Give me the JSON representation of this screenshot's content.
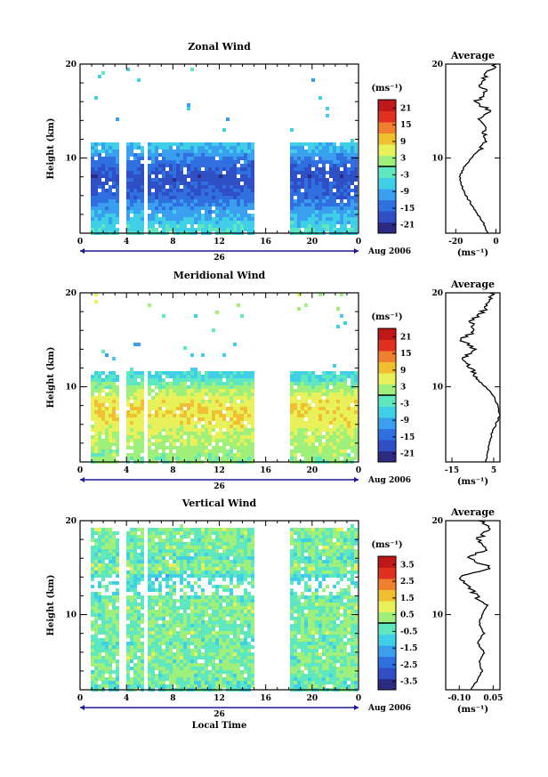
{
  "chart_data": [
    {
      "type": "heatmap",
      "title": "Zonal Wind",
      "ylabel": "Height (km)",
      "xlabel": "",
      "date_label": "Aug 2006",
      "date_tick": "26",
      "x_ticks": [
        "0",
        "4",
        "8",
        "12",
        "16",
        "20",
        "0"
      ],
      "y_ticks": [
        "10",
        "20"
      ],
      "xlim": [
        0,
        24
      ],
      "ylim": [
        2,
        20
      ],
      "gaps_hours": [
        [
          3.5,
          4.0
        ],
        [
          5.5,
          5.8
        ],
        [
          15.0,
          18.0
        ]
      ],
      "data_top_km": 11.5,
      "colorbar": {
        "unit": "(ms⁻¹)",
        "ticks": [
          "21",
          "15",
          "9",
          "3",
          "-3",
          "-9",
          "-15",
          "-21"
        ],
        "range": [
          -24,
          24
        ]
      },
      "profile_heights_km": [
        2,
        3,
        4,
        5,
        6,
        7,
        8,
        9,
        10,
        11,
        12,
        13,
        14,
        15,
        16,
        17,
        18,
        19,
        20
      ],
      "heatmap_values": [
        -4,
        -6,
        -9,
        -12,
        -15,
        -17,
        -18,
        -16,
        -12,
        -8,
        -5,
        -6,
        -8,
        -3,
        -10,
        -5,
        -8,
        -4,
        0
      ],
      "average": {
        "title": "Average",
        "xlabel": "(ms⁻¹)",
        "x_ticks": [
          "-20",
          "0"
        ],
        "xlim": [
          -25,
          2
        ],
        "heights_km": [
          2,
          3,
          4,
          5,
          6,
          7,
          8,
          9,
          10,
          11,
          12,
          13,
          14,
          15,
          16,
          17,
          18,
          19,
          20
        ],
        "values": [
          -4,
          -6,
          -9,
          -12,
          -15,
          -17,
          -18,
          -16,
          -12,
          -8,
          -5,
          -6,
          -8,
          -3,
          -10,
          -5,
          -8,
          -4,
          0
        ]
      }
    },
    {
      "type": "heatmap",
      "title": "Meridional Wind",
      "ylabel": "Height (km)",
      "xlabel": "",
      "date_label": "Aug 2006",
      "date_tick": "26",
      "x_ticks": [
        "0",
        "4",
        "8",
        "12",
        "16",
        "20",
        "0"
      ],
      "y_ticks": [
        "10",
        "20"
      ],
      "xlim": [
        0,
        24
      ],
      "ylim": [
        2,
        20
      ],
      "gaps_hours": [
        [
          3.5,
          4.0
        ],
        [
          5.5,
          5.8
        ],
        [
          15.0,
          18.0
        ]
      ],
      "data_top_km": 11.5,
      "colorbar": {
        "unit": "(ms⁻¹)",
        "ticks": [
          "21",
          "15",
          "9",
          "3",
          "-3",
          "-9",
          "-15",
          "-21"
        ],
        "range": [
          -24,
          24
        ]
      },
      "profile_heights_km": [
        2,
        3,
        4,
        5,
        6,
        7,
        8,
        9,
        10,
        11,
        12,
        13,
        14,
        15,
        16,
        17,
        18,
        19,
        20
      ],
      "heatmap_values": [
        1,
        2,
        3,
        4,
        6,
        8,
        7,
        5,
        1,
        -4,
        -6,
        -9,
        -4,
        -11,
        -3,
        -6,
        0,
        3,
        4
      ],
      "average": {
        "title": "Average",
        "xlabel": "(ms⁻¹)",
        "x_ticks": [
          "-15",
          "5"
        ],
        "xlim": [
          -18,
          8
        ],
        "heights_km": [
          2,
          3,
          4,
          5,
          6,
          7,
          8,
          9,
          10,
          11,
          12,
          13,
          14,
          15,
          16,
          17,
          18,
          19,
          20
        ],
        "values": [
          1,
          2,
          3,
          4,
          6,
          8,
          7,
          5,
          1,
          -4,
          -6,
          -9,
          -4,
          -11,
          -3,
          -6,
          0,
          3,
          4
        ]
      }
    },
    {
      "type": "heatmap",
      "title": "Vertical Wind",
      "ylabel": "Height (km)",
      "xlabel": "Local Time",
      "date_label": "Aug 2006",
      "date_tick": "26",
      "x_ticks": [
        "0",
        "4",
        "8",
        "12",
        "16",
        "20",
        "0"
      ],
      "y_ticks": [
        "10",
        "20"
      ],
      "xlim": [
        0,
        24
      ],
      "ylim": [
        2,
        20
      ],
      "gaps_hours": [
        [
          3.5,
          4.0
        ],
        [
          5.5,
          5.8
        ],
        [
          15.0,
          18.0
        ]
      ],
      "data_top_km": 19.2,
      "colorbar": {
        "unit": "(ms⁻¹)",
        "ticks": [
          "3.5",
          "2.5",
          "1.5",
          "0.5",
          "-0.5",
          "-1.5",
          "-2.5",
          "-3.5"
        ],
        "range": [
          -4,
          4
        ]
      },
      "profile_heights_km": [
        2,
        3,
        4,
        5,
        6,
        7,
        8,
        9,
        10,
        11,
        12,
        13,
        14,
        15,
        16,
        17,
        18,
        19,
        20
      ],
      "heatmap_values": [
        -0.05,
        -0.02,
        0.0,
        -0.01,
        0.01,
        -0.02,
        0.01,
        -0.01,
        0.0,
        0.02,
        -0.03,
        -0.05,
        -0.1,
        0.04,
        -0.06,
        0.02,
        -0.02,
        0.03,
        0.0
      ],
      "average": {
        "title": "Average",
        "xlabel": "(ms⁻¹)",
        "x_ticks": [
          "-0.10",
          "0.05"
        ],
        "xlim": [
          -0.16,
          0.08
        ],
        "heights_km": [
          2,
          3,
          4,
          5,
          6,
          7,
          8,
          9,
          10,
          11,
          12,
          13,
          14,
          15,
          16,
          17,
          18,
          19,
          20
        ],
        "values": [
          -0.05,
          -0.02,
          0.0,
          -0.01,
          0.01,
          -0.02,
          0.01,
          -0.01,
          0.0,
          0.02,
          -0.03,
          -0.05,
          -0.1,
          0.04,
          -0.06,
          0.02,
          -0.02,
          0.03,
          0.0
        ]
      }
    }
  ]
}
